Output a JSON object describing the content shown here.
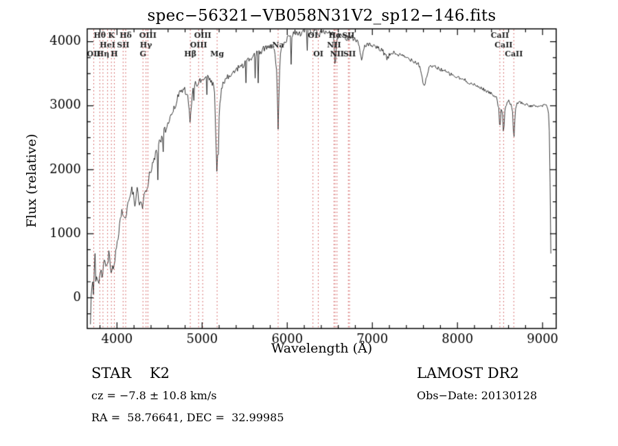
{
  "chart_data": {
    "type": "line",
    "title": "spec−56321−VB058N31V2_sp12−146.fits",
    "xlabel": "Wavelength (Å)",
    "ylabel": "Flux (relative)",
    "xlim": [
      3650,
      9160
    ],
    "ylim": [
      -480,
      4200
    ],
    "xticks": [
      4000,
      5000,
      6000,
      7000,
      8000,
      9000
    ],
    "yticks": [
      0,
      1000,
      2000,
      3000,
      4000
    ],
    "x_minor_step": 200,
    "y_minor_step": 250,
    "grid": false,
    "legend": "none",
    "line_color": "#000000",
    "marker_line_color": "#cc4949",
    "marker_label_color": "#1a1a1a",
    "noise": {
      "blue": 140,
      "red": 30
    },
    "line_markers": [
      {
        "x": 3727,
        "label": "OII",
        "row": 3
      },
      {
        "x": 3798,
        "label": "Hθ",
        "row": 1
      },
      {
        "x": 3835,
        "label": "Hη",
        "row": 3
      },
      {
        "x": 3889,
        "label": "HeI",
        "row": 2
      },
      {
        "x": 3934,
        "label": "K",
        "row": 1
      },
      {
        "x": 3969,
        "label": "H",
        "row": 3
      },
      {
        "x": 4072,
        "label": "SII",
        "row": 2
      },
      {
        "x": 4102,
        "label": "Hδ",
        "row": 1
      },
      {
        "x": 4305,
        "label": "G",
        "row": 3
      },
      {
        "x": 4341,
        "label": "Hγ",
        "row": 2
      },
      {
        "x": 4363,
        "label": "OIII",
        "row": 1
      },
      {
        "x": 4861,
        "label": "Hβ",
        "row": 3
      },
      {
        "x": 4959,
        "label": "OIII",
        "row": 2
      },
      {
        "x": 5007,
        "label": "OIII",
        "row": 1
      },
      {
        "x": 5176,
        "label": "Mg",
        "row": 3
      },
      {
        "x": 5893,
        "label": "Na",
        "row": 2
      },
      {
        "x": 6302,
        "label": "OI",
        "row": 1
      },
      {
        "x": 6365,
        "label": "OI",
        "row": 3
      },
      {
        "x": 6549,
        "label": "NII",
        "row": 2
      },
      {
        "x": 6563,
        "label": "Hα",
        "row": 1
      },
      {
        "x": 6585,
        "label": "NII",
        "row": 3
      },
      {
        "x": 6718,
        "label": "SII",
        "row": 1
      },
      {
        "x": 6732,
        "label": "SII",
        "row": 3
      },
      {
        "x": 8498,
        "label": "CaII",
        "row": 1
      },
      {
        "x": 8542,
        "label": "CaII",
        "row": 2
      },
      {
        "x": 8662,
        "label": "CaII",
        "row": 3
      }
    ],
    "spectrum": [
      [
        3688,
        -430
      ],
      [
        3692,
        -150
      ],
      [
        3696,
        80
      ],
      [
        3700,
        -60
      ],
      [
        3705,
        150
      ],
      [
        3710,
        40
      ],
      [
        3716,
        260
      ],
      [
        3722,
        120
      ],
      [
        3728,
        60
      ],
      [
        3734,
        520
      ],
      [
        3740,
        880
      ],
      [
        3746,
        420
      ],
      [
        3752,
        200
      ],
      [
        3758,
        330
      ],
      [
        3764,
        160
      ],
      [
        3772,
        360
      ],
      [
        3780,
        280
      ],
      [
        3788,
        150
      ],
      [
        3796,
        300
      ],
      [
        3804,
        420
      ],
      [
        3812,
        520
      ],
      [
        3820,
        360
      ],
      [
        3828,
        240
      ],
      [
        3836,
        420
      ],
      [
        3844,
        560
      ],
      [
        3852,
        700
      ],
      [
        3860,
        560
      ],
      [
        3868,
        440
      ],
      [
        3876,
        580
      ],
      [
        3884,
        500
      ],
      [
        3892,
        560
      ],
      [
        3900,
        720
      ],
      [
        3908,
        820
      ],
      [
        3916,
        640
      ],
      [
        3924,
        480
      ],
      [
        3932,
        330
      ],
      [
        3940,
        420
      ],
      [
        3948,
        580
      ],
      [
        3956,
        520
      ],
      [
        3964,
        430
      ],
      [
        3972,
        520
      ],
      [
        3980,
        640
      ],
      [
        3990,
        760
      ],
      [
        4000,
        870
      ],
      [
        4015,
        1000
      ],
      [
        4030,
        1150
      ],
      [
        4045,
        1280
      ],
      [
        4060,
        1380
      ],
      [
        4075,
        1300
      ],
      [
        4090,
        1180
      ],
      [
        4105,
        1260
      ],
      [
        4120,
        1450
      ],
      [
        4135,
        1580
      ],
      [
        4150,
        1520
      ],
      [
        4165,
        1630
      ],
      [
        4180,
        1700
      ],
      [
        4195,
        1560
      ],
      [
        4210,
        1480
      ],
      [
        4225,
        1620
      ],
      [
        4240,
        1680
      ],
      [
        4255,
        1540
      ],
      [
        4270,
        1460
      ],
      [
        4285,
        1420
      ],
      [
        4300,
        1380
      ],
      [
        4315,
        1560
      ],
      [
        4330,
        1680
      ],
      [
        4345,
        1600
      ],
      [
        4360,
        1760
      ],
      [
        4375,
        1880
      ],
      [
        4390,
        1960
      ],
      [
        4410,
        2060
      ],
      [
        4430,
        2140
      ],
      [
        4450,
        2220
      ],
      [
        4475,
        2320
      ],
      [
        4500,
        2420
      ],
      [
        4525,
        2500
      ],
      [
        4550,
        2570
      ],
      [
        4575,
        2640
      ],
      [
        4600,
        2720
      ],
      [
        4630,
        2840
      ],
      [
        4660,
        2940
      ],
      [
        4690,
        3040
      ],
      [
        4720,
        3140
      ],
      [
        4750,
        3220
      ],
      [
        4780,
        3260
      ],
      [
        4810,
        3230
      ],
      [
        4835,
        3080
      ],
      [
        4861,
        2720
      ],
      [
        4880,
        3120
      ],
      [
        4900,
        3280
      ],
      [
        4925,
        3330
      ],
      [
        4950,
        3360
      ],
      [
        4975,
        3390
      ],
      [
        5000,
        3410
      ],
      [
        5025,
        3430
      ],
      [
        5050,
        3440
      ],
      [
        5075,
        3410
      ],
      [
        5100,
        3380
      ],
      [
        5125,
        3360
      ],
      [
        5145,
        3200
      ],
      [
        5160,
        2650
      ],
      [
        5172,
        1980
      ],
      [
        5185,
        2280
      ],
      [
        5200,
        2850
      ],
      [
        5220,
        3180
      ],
      [
        5245,
        3320
      ],
      [
        5270,
        3390
      ],
      [
        5300,
        3430
      ],
      [
        5330,
        3470
      ],
      [
        5360,
        3510
      ],
      [
        5400,
        3560
      ],
      [
        5440,
        3600
      ],
      [
        5480,
        3640
      ],
      [
        5520,
        3680
      ],
      [
        5560,
        3720
      ],
      [
        5600,
        3760
      ],
      [
        5640,
        3800
      ],
      [
        5680,
        3840
      ],
      [
        5720,
        3880
      ],
      [
        5760,
        3920
      ],
      [
        5800,
        3950
      ],
      [
        5830,
        3930
      ],
      [
        5860,
        3820
      ],
      [
        5880,
        3400
      ],
      [
        5893,
        2620
      ],
      [
        5906,
        3320
      ],
      [
        5920,
        3820
      ],
      [
        5940,
        3950
      ],
      [
        5960,
        4000
      ],
      [
        5990,
        4040
      ],
      [
        6020,
        4080
      ],
      [
        6050,
        4110
      ],
      [
        6080,
        4140
      ],
      [
        6110,
        4160
      ],
      [
        6140,
        4120
      ],
      [
        6170,
        4150
      ],
      [
        6200,
        4170
      ],
      [
        6230,
        4190
      ],
      [
        6260,
        4160
      ],
      [
        6290,
        4120
      ],
      [
        6310,
        4170
      ],
      [
        6330,
        4190
      ],
      [
        6350,
        4140
      ],
      [
        6365,
        4060
      ],
      [
        6385,
        4140
      ],
      [
        6410,
        4160
      ],
      [
        6440,
        4130
      ],
      [
        6470,
        4150
      ],
      [
        6500,
        4120
      ],
      [
        6530,
        4150
      ],
      [
        6548,
        4060
      ],
      [
        6563,
        3500
      ],
      [
        6580,
        4020
      ],
      [
        6600,
        4090
      ],
      [
        6625,
        4110
      ],
      [
        6650,
        4070
      ],
      [
        6675,
        4090
      ],
      [
        6700,
        4050
      ],
      [
        6725,
        4070
      ],
      [
        6750,
        4090
      ],
      [
        6780,
        4050
      ],
      [
        6810,
        4020
      ],
      [
        6840,
        3990
      ],
      [
        6862,
        3760
      ],
      [
        6875,
        3700
      ],
      [
        6890,
        3830
      ],
      [
        6910,
        3940
      ],
      [
        6940,
        3960
      ],
      [
        6970,
        3940
      ],
      [
        7000,
        3930
      ],
      [
        7030,
        3910
      ],
      [
        7060,
        3900
      ],
      [
        7090,
        3880
      ],
      [
        7120,
        3850
      ],
      [
        7150,
        3800
      ],
      [
        7175,
        3720
      ],
      [
        7200,
        3790
      ],
      [
        7230,
        3830
      ],
      [
        7260,
        3820
      ],
      [
        7300,
        3800
      ],
      [
        7340,
        3780
      ],
      [
        7380,
        3760
      ],
      [
        7420,
        3740
      ],
      [
        7460,
        3720
      ],
      [
        7500,
        3690
      ],
      [
        7540,
        3660
      ],
      [
        7570,
        3560
      ],
      [
        7595,
        3360
      ],
      [
        7615,
        3300
      ],
      [
        7640,
        3480
      ],
      [
        7665,
        3580
      ],
      [
        7700,
        3620
      ],
      [
        7740,
        3600
      ],
      [
        7780,
        3580
      ],
      [
        7820,
        3560
      ],
      [
        7860,
        3530
      ],
      [
        7900,
        3500
      ],
      [
        7940,
        3480
      ],
      [
        7980,
        3450
      ],
      [
        8020,
        3430
      ],
      [
        8060,
        3410
      ],
      [
        8100,
        3390
      ],
      [
        8140,
        3360
      ],
      [
        8180,
        3330
      ],
      [
        8220,
        3310
      ],
      [
        8260,
        3290
      ],
      [
        8300,
        3260
      ],
      [
        8340,
        3230
      ],
      [
        8380,
        3200
      ],
      [
        8420,
        3170
      ],
      [
        8460,
        3140
      ],
      [
        8485,
        2950
      ],
      [
        8498,
        2580
      ],
      [
        8512,
        2960
      ],
      [
        8528,
        2920
      ],
      [
        8542,
        2500
      ],
      [
        8558,
        2930
      ],
      [
        8580,
        3040
      ],
      [
        8605,
        3080
      ],
      [
        8630,
        3010
      ],
      [
        8648,
        2880
      ],
      [
        8662,
        2450
      ],
      [
        8678,
        2900
      ],
      [
        8700,
        3040
      ],
      [
        8730,
        3060
      ],
      [
        8760,
        3040
      ],
      [
        8800,
        3020
      ],
      [
        8840,
        3000
      ],
      [
        8880,
        2990
      ],
      [
        8920,
        3000
      ],
      [
        8960,
        2990
      ],
      [
        9000,
        3000
      ],
      [
        9030,
        3020
      ],
      [
        9055,
        2990
      ],
      [
        9075,
        2850
      ],
      [
        9085,
        2200
      ],
      [
        9092,
        1300
      ],
      [
        9097,
        700
      ]
    ]
  },
  "footer": {
    "class_label": "STAR    K2",
    "survey": "LAMOST DR2",
    "cz": "cz = −7.8 ± 10.8 km/s",
    "obs_date": "Obs−Date: 20130128",
    "ra_dec": "RA =  58.76641, DEC =  32.99985"
  }
}
